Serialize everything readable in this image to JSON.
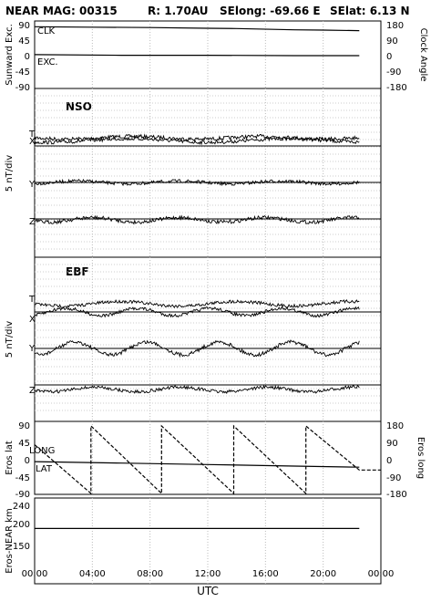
{
  "header": {
    "mission": "NEAR MAG: 00315",
    "range": "R: 1.70AU",
    "selong": "SElong:  -69.66 E",
    "selat": "SElat:    6.13 N"
  },
  "chart_data": {
    "type": "line",
    "xlabel": "UTC",
    "x_ticks": [
      "00:00",
      "04:00",
      "08:00",
      "12:00",
      "16:00",
      "20:00",
      "00:00"
    ],
    "x_range_hours": [
      0,
      24
    ],
    "data_end_hour": 22.5,
    "panels": [
      {
        "id": "sunward",
        "ylabel_left": "Sunward Exc.",
        "ylabel_right": "Clock Angle",
        "left_ticks": [
          "90",
          "45",
          "0",
          "-45",
          "-90"
        ],
        "right_ticks": [
          "180",
          "90",
          "0",
          "-90",
          "-180"
        ],
        "series": [
          {
            "name": "CLK",
            "x": [
              0,
              4,
              8,
              12,
              14,
              18,
              20,
              22.5
            ],
            "y_right": [
              168,
              165,
              163,
              159,
              157,
              150,
              148,
              145
            ]
          },
          {
            "name": "EXC.",
            "x": [
              0,
              6,
              12,
              18,
              22.5
            ],
            "y_left": [
              3,
              1,
              1,
              0,
              0
            ]
          }
        ]
      },
      {
        "id": "nso",
        "name": "NSO",
        "ylabel_left": "5 nT/div",
        "components": [
          "T",
          "X",
          "Y",
          "Z"
        ],
        "grid": "horizontal"
      },
      {
        "id": "ebf",
        "name": "EBF",
        "ylabel_left": "5 nT/div",
        "components": [
          "T",
          "X",
          "Y",
          "Z"
        ],
        "grid": "horizontal"
      },
      {
        "id": "eros",
        "ylabel_left": "Eros lat",
        "ylabel_right": "Eros long",
        "left_ticks": [
          "90",
          "45",
          "0",
          "-45",
          "-90"
        ],
        "right_ticks": [
          "180",
          "90",
          "0",
          "-90",
          "-180"
        ],
        "series": [
          {
            "name": "LONG",
            "style": "dashed",
            "x": [
              0,
              3.9,
              3.9,
              8.8,
              8.8,
              13.8,
              13.8,
              18.8,
              18.8,
              22.5,
              22.5,
              24
            ],
            "y_right": [
              80,
              -180,
              180,
              -180,
              180,
              -180,
              180,
              -180,
              180,
              -55,
              -55,
              -55
            ]
          },
          {
            "name": "LAT",
            "x": [
              0,
              6,
              12,
              18,
              22.5
            ],
            "y_left": [
              -5,
              -9,
              -13,
              -17,
              -20
            ]
          }
        ]
      },
      {
        "id": "range",
        "ylabel_left": "Eros-NEAR km",
        "left_ticks": [
          "240",
          "200",
          "150"
        ],
        "series": [
          {
            "name": "Eros-NEAR km",
            "x": [
              0,
              22.5
            ],
            "y": [
              197,
              197
            ]
          }
        ]
      }
    ]
  }
}
